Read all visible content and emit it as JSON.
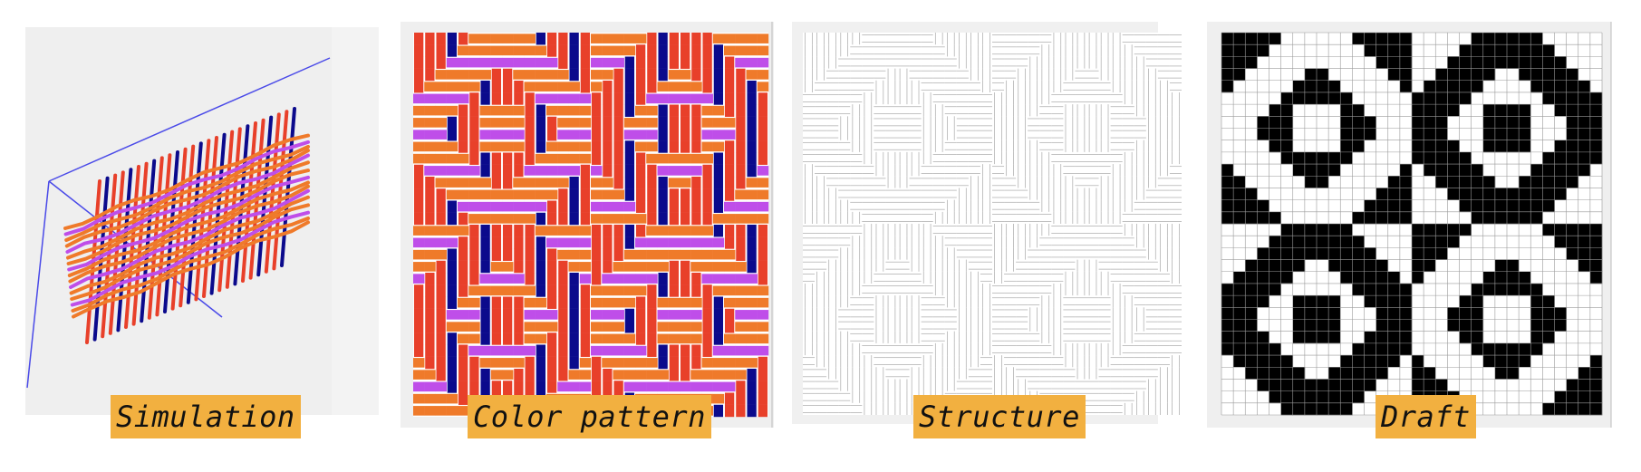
{
  "panels": [
    {
      "id": "simulation",
      "label": "Simulation"
    },
    {
      "id": "color-pattern",
      "label": "Color pattern"
    },
    {
      "id": "structure",
      "label": "Structure"
    },
    {
      "id": "draft",
      "label": "Draft"
    }
  ],
  "colors": {
    "label_bg": "#f2b040",
    "warp_red": "#e8402a",
    "warp_navy": "#0b0a8c",
    "weft_orange": "#ef7a2a",
    "weft_violet": "#bf4ee9",
    "panel_bg": "#efefef",
    "axis_blue": "#4a4ae8",
    "draft_black": "#000000",
    "grid_gray": "#9a9a9a"
  },
  "draft_grid": {
    "columns": 32,
    "rows": 32
  }
}
